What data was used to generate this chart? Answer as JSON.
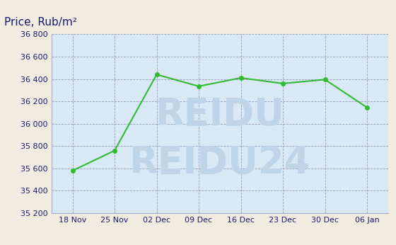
{
  "x_labels": [
    "18 Nov",
    "25 Nov",
    "02 Dec",
    "09 Dec",
    "16 Dec",
    "23 Dec",
    "30 Dec",
    "06 Jan"
  ],
  "y_values": [
    35580,
    35760,
    36440,
    36335,
    36410,
    36360,
    36395,
    36145
  ],
  "title": "Price, Rub/m²",
  "ylim": [
    35200,
    36800
  ],
  "yticks": [
    35200,
    35400,
    35600,
    35800,
    36000,
    36200,
    36400,
    36600,
    36800
  ],
  "line_color": "#33bb33",
  "marker_color": "#33bb33",
  "bg_color": "#d8e8f5",
  "outer_bg": "#f0ece0",
  "grid_color": "#9999bb",
  "title_color": "#1a1a6e",
  "tick_label_color": "#1a1a6e",
  "watermark_line1": "REIDU",
  "watermark_line2": "REIDU24",
  "watermark_color": "#c0d4e8",
  "border_color": "#aaaacc"
}
